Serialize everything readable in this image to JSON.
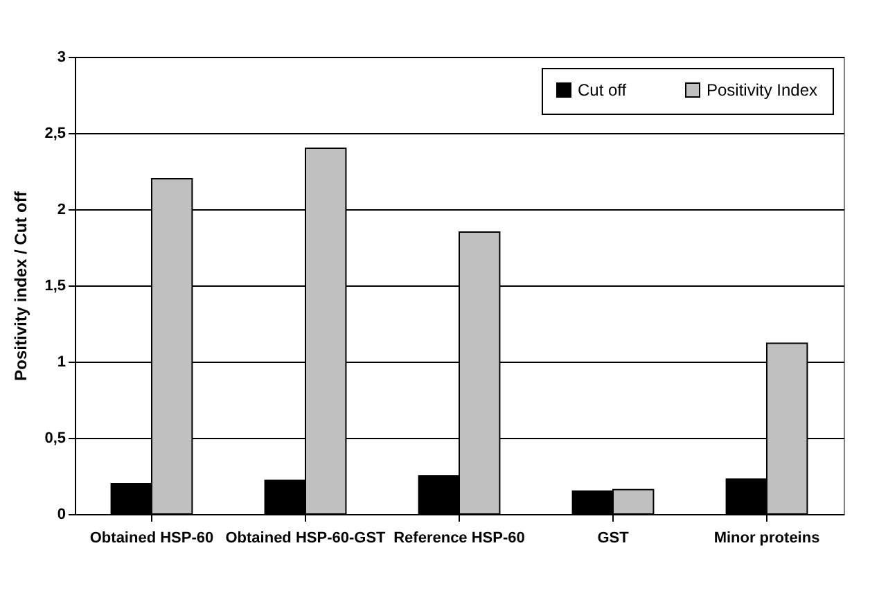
{
  "chart_data": {
    "type": "bar",
    "ylabel": "Positivity index / Cut off",
    "categories": [
      "Obtained\nHSP-60",
      "Obtained\nHSP-60-GST",
      "Reference\nHSP-60",
      "GST",
      "Minor proteins"
    ],
    "series": [
      {
        "name": "Cut off",
        "color": "#000000",
        "values": [
          0.2,
          0.22,
          0.25,
          0.15,
          0.23
        ]
      },
      {
        "name": "Positivity Index",
        "color": "#c0c0c0",
        "values": [
          2.2,
          2.4,
          1.85,
          0.16,
          1.12
        ]
      }
    ],
    "ylim": [
      0,
      3
    ],
    "yticks": [
      0,
      {
        "value": 0.5,
        "label": "0,5"
      },
      1,
      {
        "value": 1.5,
        "label": "1,5"
      },
      2,
      {
        "value": 2.5,
        "label": "2,5"
      },
      3
    ],
    "grid": "y",
    "legend": "top right"
  }
}
